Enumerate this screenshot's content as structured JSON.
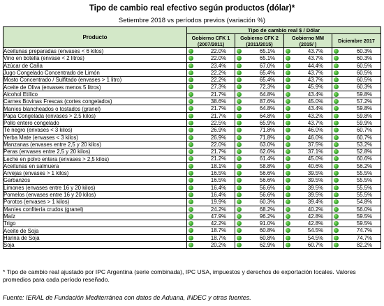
{
  "title": "Tipo de cambio real efectivo según productos (dólar)*",
  "subtitle": "Setiembre 2018 vs períodos previos (variación %)",
  "table": {
    "product_header": "Producto",
    "group_header": "Tipo de cambio real $ / Dólar",
    "columns": [
      {
        "line1": "Gobierno CFK 1",
        "line2": "(2007/2011)"
      },
      {
        "line1": "Gobierno CFK 2",
        "line2": "(2011/2015)"
      },
      {
        "line1": "Gobierno MM",
        "line2": "(2015/ )"
      },
      {
        "line1": "Diciembre 2017",
        "line2": ""
      }
    ],
    "rows": [
      {
        "product": "Aceitunas preparadas (envases < 6 kilos)",
        "values": [
          "22.0%",
          "65.1%",
          "43.7%",
          "60.3%"
        ]
      },
      {
        "product": "Vino en botella (envase < 2 litros)",
        "values": [
          "22.0%",
          "65.1%",
          "43.7%",
          "60.3%"
        ]
      },
      {
        "product": "Azúcar de Caña",
        "values": [
          "23.4%",
          "67.0%",
          "44.4%",
          "60.5%"
        ]
      },
      {
        "product": "Jugo Congelado Concentrado de Limón",
        "values": [
          "22.2%",
          "65.4%",
          "43.7%",
          "60.5%"
        ]
      },
      {
        "product": "Mosto Concentrado / Sulfitado (envases > 1 litro)",
        "values": [
          "22.2%",
          "65.4%",
          "43.7%",
          "60.5%"
        ]
      },
      {
        "product": "Aceite de Oliva (envases menos 5 litros)",
        "values": [
          "27.3%",
          "72.3%",
          "45.9%",
          "60.3%"
        ]
      },
      {
        "product": "Alcohol Etílico",
        "values": [
          "21.7%",
          "64.8%",
          "43.4%",
          "59.8%"
        ]
      },
      {
        "product": "Carnes Bovinas Frescas (cortes congelados)",
        "values": [
          "38.6%",
          "87.6%",
          "45.0%",
          "57.2%"
        ]
      },
      {
        "product": "Maníes blancheados  o tostados (granel)",
        "values": [
          "21.7%",
          "64.8%",
          "43.4%",
          "59.8%"
        ]
      },
      {
        "product": "Papa Congelada (envases > 2,5 kilos)",
        "values": [
          "21.7%",
          "64.8%",
          "43.2%",
          "59.8%"
        ]
      },
      {
        "product": "Pollo entero congelado",
        "values": [
          "22.5%",
          "65.9%",
          "43.7%",
          "59.9%"
        ]
      },
      {
        "product": "Té negro (envases < 3 kilos)",
        "values": [
          "26.9%",
          "71.8%",
          "46.0%",
          "60.7%"
        ]
      },
      {
        "product": "Yerba Mate (envases < 3 kilos)",
        "values": [
          "26.9%",
          "71.8%",
          "46.0%",
          "60.7%"
        ]
      },
      {
        "product": "Manzanas (envases entre 2,5 y 20 kilos)",
        "values": [
          "22.0%",
          "63.0%",
          "37.5%",
          "53.2%"
        ]
      },
      {
        "product": "Peras (envases entre 2,5 y 20 kilos)",
        "values": [
          "21.7%",
          "62.6%",
          "37.1%",
          "52.8%"
        ]
      },
      {
        "product": "Leche en polvo entera (envases > 2,5 kilos)",
        "values": [
          "21.2%",
          "61.4%",
          "45.0%",
          "60.6%"
        ]
      },
      {
        "product": "Aceitunas en salmuera",
        "values": [
          "18.1%",
          "58.8%",
          "40.6%",
          "56.2%"
        ]
      },
      {
        "product": "Arvejas (envases > 1 kilos)",
        "values": [
          "16.5%",
          "56.6%",
          "39.5%",
          "55.5%"
        ]
      },
      {
        "product": "Garbanzos",
        "values": [
          "16.5%",
          "56.6%",
          "39.5%",
          "55.5%"
        ]
      },
      {
        "product": "Limones (envases entre 16 y 20 kilos)",
        "values": [
          "16.4%",
          "56.6%",
          "39.5%",
          "55.5%"
        ]
      },
      {
        "product": "Pomelos (envases entre 16 y 20 kilos)",
        "values": [
          "16.4%",
          "56.6%",
          "39.5%",
          "55.5%"
        ]
      },
      {
        "product": "Porotos (envases > 1 kilos)",
        "values": [
          "19.9%",
          "60.3%",
          "39.4%",
          "54.8%"
        ]
      },
      {
        "product": "Maníes confitería crudos (granel)",
        "values": [
          "24.2%",
          "68.2%",
          "40.2%",
          "56.0%"
        ]
      },
      {
        "product": "Maíz",
        "values": [
          "47.9%",
          "96.2%",
          "42.8%",
          "59.5%"
        ]
      },
      {
        "product": "Trigo",
        "values": [
          "42.2%",
          "91.0%",
          "42.8%",
          "59.5%"
        ]
      },
      {
        "product": "Aceite de Soja",
        "values": [
          "18.7%",
          "60.8%",
          "54.5%",
          "74.7%"
        ]
      },
      {
        "product": "Harina de Soja",
        "values": [
          "18.7%",
          "60.8%",
          "54.5%",
          "74.7%"
        ]
      },
      {
        "product": "Soja",
        "values": [
          "20.2%",
          "62.9%",
          "60.7%",
          "82.2%"
        ]
      }
    ]
  },
  "colors": {
    "header_bg": "#d3e8c8",
    "indicator": "#3aa832"
  },
  "indicator_icon": "green-circle-icon",
  "note": "* Tipo de cambio real ajustado por IPC Argentina (serie combinada), IPC USA, impuestos y derechos de exportación locales. Valores promedios para cada período reseñado.",
  "source": "Fuente: IERAL de Fundación Mediterránea con datos de Aduana, INDEC y otras fuentes."
}
